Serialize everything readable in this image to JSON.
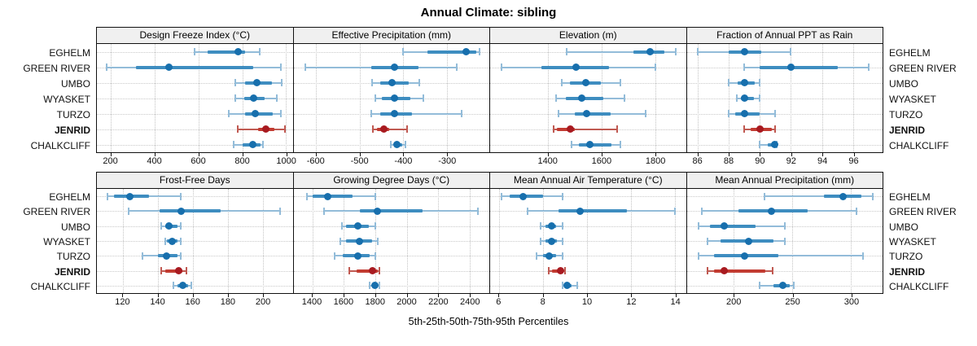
{
  "title": "Annual Climate: sibling",
  "xlabel": "5th-25th-50th-75th-95th Percentiles",
  "sites": [
    "EGHELM",
    "GREEN RIVER",
    "UMBO",
    "WYASKET",
    "TURZO",
    "JENRID",
    "CHALKCLIFF"
  ],
  "highlight_site": "JENRID",
  "colors": {
    "normal_dot": "#176fad",
    "normal_bar": "#3e8dc0",
    "normal_whisker": "#93bcd9",
    "highlight_dot": "#a81a20",
    "highlight_bar": "#c23b31",
    "highlight_whisker": "#c05a52",
    "grid": "#c9c9c9",
    "header_bg": "#f0f0f0",
    "border": "#111111"
  },
  "percentile_labels": [
    "5th",
    "25th",
    "50th",
    "75th",
    "95th"
  ],
  "chart_data": [
    {
      "type": "percentile_interval",
      "title": "Design Freeze Index (°C)",
      "ticks": [
        200,
        400,
        600,
        800,
        1000
      ],
      "xlim": [
        135,
        1030
      ],
      "series": [
        {
          "name": "EGHELM",
          "values": [
            580,
            640,
            780,
            812,
            880
          ]
        },
        {
          "name": "GREEN RIVER",
          "values": [
            181,
            314,
            463,
            851,
            977
          ]
        },
        {
          "name": "UMBO",
          "values": [
            769,
            814,
            867,
            935,
            978
          ]
        },
        {
          "name": "WYASKET",
          "values": [
            766,
            809,
            851,
            901,
            956
          ]
        },
        {
          "name": "TURZO",
          "values": [
            737,
            813,
            857,
            939,
            977
          ]
        },
        {
          "name": "JENRID",
          "values": [
            779,
            870,
            908,
            946,
            996
          ]
        },
        {
          "name": "CHALKCLIFF",
          "values": [
            762,
            800,
            848,
            882,
            895
          ]
        }
      ]
    },
    {
      "type": "percentile_interval",
      "title": "Effective Precipitation (mm)",
      "ticks": [
        -600,
        -500,
        -400,
        -300
      ],
      "xlim": [
        -652,
        -203
      ],
      "series": [
        {
          "name": "EGHELM",
          "values": [
            -400,
            -345,
            -257,
            -232,
            -225
          ]
        },
        {
          "name": "GREEN RIVER",
          "values": [
            -625,
            -474,
            -421,
            -365,
            -277
          ]
        },
        {
          "name": "UMBO",
          "values": [
            -472,
            -453,
            -426,
            -387,
            -363
          ]
        },
        {
          "name": "WYASKET",
          "values": [
            -465,
            -450,
            -420,
            -385,
            -355
          ]
        },
        {
          "name": "TURZO",
          "values": [
            -473,
            -453,
            -420,
            -380,
            -266
          ]
        },
        {
          "name": "JENRID",
          "values": [
            -470,
            -461,
            -445,
            -433,
            -391
          ]
        },
        {
          "name": "CHALKCLIFF",
          "values": [
            -428,
            -421,
            -414,
            -403,
            -395
          ]
        }
      ]
    },
    {
      "type": "percentile_interval",
      "title": "Elevation (m)",
      "ticks": [
        1400,
        1600,
        1800
      ],
      "xlim": [
        1185,
        1915
      ],
      "series": [
        {
          "name": "EGHELM",
          "values": [
            1471,
            1719,
            1782,
            1835,
            1876
          ]
        },
        {
          "name": "GREEN RIVER",
          "values": [
            1228,
            1375,
            1504,
            1628,
            1800
          ]
        },
        {
          "name": "UMBO",
          "values": [
            1453,
            1481,
            1542,
            1597,
            1670
          ]
        },
        {
          "name": "WYASKET",
          "values": [
            1432,
            1466,
            1527,
            1608,
            1686
          ]
        },
        {
          "name": "TURZO",
          "values": [
            1441,
            1501,
            1545,
            1633,
            1765
          ]
        },
        {
          "name": "JENRID",
          "values": [
            1422,
            1435,
            1484,
            1501,
            1660
          ]
        },
        {
          "name": "CHALKCLIFF",
          "values": [
            1489,
            1516,
            1557,
            1638,
            1670
          ]
        }
      ]
    },
    {
      "type": "percentile_interval",
      "title": "Fraction of Annual PPT as Rain",
      "ticks": [
        86,
        88,
        90,
        92,
        94,
        96
      ],
      "xlim": [
        85.3,
        97.9
      ],
      "series": [
        {
          "name": "EGHELM",
          "values": [
            86,
            88,
            89,
            90.1,
            92
          ]
        },
        {
          "name": "GREEN RIVER",
          "values": [
            89,
            90,
            92,
            95,
            97
          ]
        },
        {
          "name": "UMBO",
          "values": [
            88,
            88.6,
            89,
            89.7,
            90
          ]
        },
        {
          "name": "WYASKET",
          "values": [
            88.5,
            88.8,
            89,
            89.6,
            90
          ]
        },
        {
          "name": "TURZO",
          "values": [
            88,
            88.4,
            89,
            90,
            91
          ]
        },
        {
          "name": "JENRID",
          "values": [
            89,
            89.4,
            90,
            90.8,
            91
          ]
        },
        {
          "name": "CHALKCLIFF",
          "values": [
            90,
            90.5,
            90.95,
            91.05,
            91.1
          ]
        }
      ]
    },
    {
      "type": "percentile_interval",
      "title": "Frost-Free Days",
      "ticks": [
        120,
        140,
        160,
        180,
        200
      ],
      "xlim": [
        105,
        217
      ],
      "series": [
        {
          "name": "EGHELM",
          "values": [
            111,
            115,
            124,
            135,
            153
          ]
        },
        {
          "name": "GREEN RIVER",
          "values": [
            123,
            141,
            153,
            176,
            210
          ]
        },
        {
          "name": "UMBO",
          "values": [
            142,
            144,
            146,
            151,
            153
          ]
        },
        {
          "name": "WYASKET",
          "values": [
            144,
            145,
            148,
            151,
            153
          ]
        },
        {
          "name": "TURZO",
          "values": [
            131,
            140,
            145,
            151,
            153
          ]
        },
        {
          "name": "JENRID",
          "values": [
            142,
            144,
            152,
            154,
            156
          ]
        },
        {
          "name": "CHALKCLIFF",
          "values": [
            149,
            151,
            154,
            157,
            159
          ]
        }
      ]
    },
    {
      "type": "percentile_interval",
      "title": "Growing Degree Days (°C)",
      "ticks": [
        1400,
        1600,
        1800,
        2000,
        2200,
        2400
      ],
      "xlim": [
        1280,
        2525
      ],
      "series": [
        {
          "name": "EGHELM",
          "values": [
            1365,
            1400,
            1495,
            1655,
            1800
          ]
        },
        {
          "name": "GREEN RIVER",
          "values": [
            1475,
            1700,
            1815,
            2100,
            2450
          ]
        },
        {
          "name": "UMBO",
          "values": [
            1590,
            1615,
            1690,
            1757,
            1800
          ]
        },
        {
          "name": "WYASKET",
          "values": [
            1580,
            1615,
            1700,
            1780,
            1815
          ]
        },
        {
          "name": "TURZO",
          "values": [
            1540,
            1595,
            1690,
            1765,
            1800
          ]
        },
        {
          "name": "JENRID",
          "values": [
            1635,
            1680,
            1783,
            1815,
            1825
          ]
        },
        {
          "name": "CHALKCLIFF",
          "values": [
            1765,
            1780,
            1800,
            1813,
            1825
          ]
        }
      ]
    },
    {
      "type": "percentile_interval",
      "title": "Mean Annual Air Temperature (°C)",
      "ticks": [
        6,
        8,
        10,
        12,
        14
      ],
      "xlim": [
        5.6,
        14.5
      ],
      "series": [
        {
          "name": "EGHELM",
          "values": [
            6.1,
            6.5,
            7.1,
            8.0,
            8.9
          ]
        },
        {
          "name": "GREEN RIVER",
          "values": [
            7.3,
            8.7,
            9.7,
            11.8,
            14.0
          ]
        },
        {
          "name": "UMBO",
          "values": [
            7.9,
            8.1,
            8.4,
            8.6,
            8.9
          ]
        },
        {
          "name": "WYASKET",
          "values": [
            7.9,
            8.1,
            8.4,
            8.65,
            8.9
          ]
        },
        {
          "name": "TURZO",
          "values": [
            7.7,
            8.0,
            8.3,
            8.6,
            8.9
          ]
        },
        {
          "name": "JENRID",
          "values": [
            8.25,
            8.4,
            8.8,
            8.9,
            9.0
          ]
        },
        {
          "name": "CHALKCLIFF",
          "values": [
            8.9,
            9.0,
            9.1,
            9.3,
            9.55
          ]
        }
      ]
    },
    {
      "type": "percentile_interval",
      "title": "Mean Annual Precipitation (mm)",
      "ticks": [
        200,
        250,
        300
      ],
      "xlim": [
        160,
        327
      ],
      "series": [
        {
          "name": "EGHELM",
          "values": [
            226,
            277,
            293,
            309,
            319
          ]
        },
        {
          "name": "GREEN RIVER",
          "values": [
            173,
            204,
            232,
            263,
            305
          ]
        },
        {
          "name": "UMBO",
          "values": [
            170,
            180,
            192,
            219,
            244
          ]
        },
        {
          "name": "WYASKET",
          "values": [
            178,
            189,
            213,
            234,
            244
          ]
        },
        {
          "name": "TURZO",
          "values": [
            170,
            183,
            209,
            238,
            310
          ]
        },
        {
          "name": "JENRID",
          "values": [
            178,
            183,
            192,
            227,
            233
          ]
        },
        {
          "name": "CHALKCLIFF",
          "values": [
            222,
            234,
            242,
            248,
            251
          ]
        }
      ]
    }
  ]
}
